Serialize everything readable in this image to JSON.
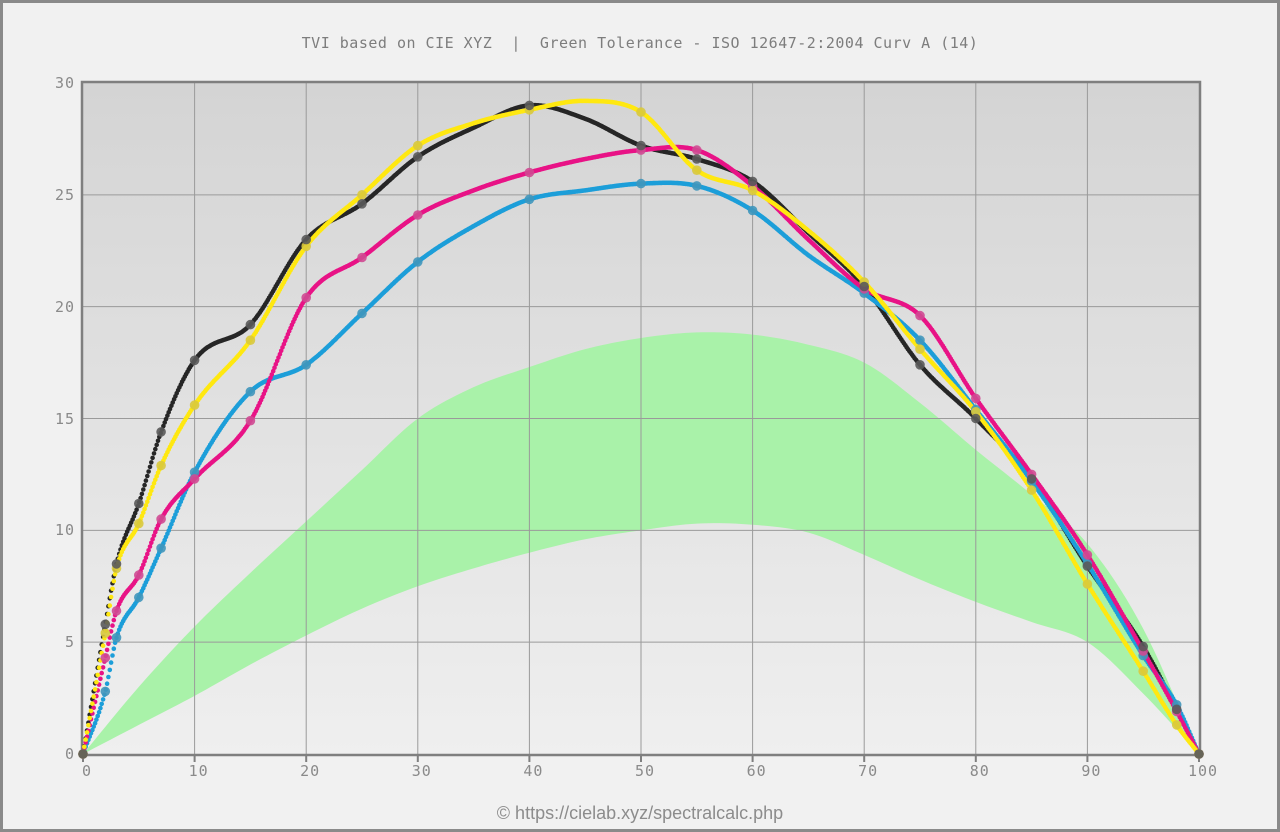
{
  "title": "TVI based on CIE XYZ  |  Green Tolerance - ISO 12647-2:2004 Curv A (14)",
  "footer": "© https://cielab.xyz/spectralcalc.php",
  "chart_data": {
    "type": "line",
    "title": "TVI based on CIE XYZ | Green Tolerance - ISO 12647-2:2004 Curv A (14)",
    "xlabel": "",
    "ylabel": "",
    "xlim": [
      0,
      100
    ],
    "ylim": [
      0,
      30
    ],
    "x_ticks": [
      0,
      10,
      20,
      30,
      40,
      50,
      60,
      70,
      80,
      90,
      100
    ],
    "y_ticks": [
      0,
      5,
      10,
      15,
      20,
      25,
      30
    ],
    "grid": true,
    "legend": "none",
    "x": [
      0,
      2,
      3,
      5,
      7,
      10,
      15,
      20,
      25,
      30,
      35,
      40,
      45,
      50,
      55,
      60,
      65,
      70,
      75,
      80,
      85,
      90,
      95,
      98,
      100
    ],
    "marker_x": [
      0,
      2,
      3,
      5,
      7,
      10,
      15,
      20,
      25,
      30,
      40,
      50,
      55,
      60,
      70,
      75,
      80,
      85,
      90,
      95,
      98,
      100
    ],
    "series": [
      {
        "name": "cyan",
        "color": "#1c9ed9",
        "marker_color": "#4096bb",
        "values": [
          0,
          2.8,
          5.2,
          7.0,
          9.2,
          12.6,
          16.2,
          17.4,
          19.7,
          22.0,
          23.6,
          24.8,
          25.2,
          25.5,
          25.4,
          24.3,
          22.3,
          20.6,
          18.5,
          15.4,
          12.2,
          8.5,
          4.4,
          2.2,
          0
        ]
      },
      {
        "name": "magenta",
        "color": "#e81386",
        "marker_color": "#cf4a92",
        "values": [
          0,
          4.3,
          6.4,
          8.0,
          10.5,
          12.3,
          14.9,
          20.4,
          22.2,
          24.1,
          25.2,
          26.0,
          26.6,
          27.0,
          27.0,
          25.4,
          23.0,
          20.8,
          19.6,
          15.9,
          12.5,
          8.9,
          4.6,
          1.9,
          0
        ]
      },
      {
        "name": "yellow",
        "color": "#ffe810",
        "marker_color": "#d9c93c",
        "values": [
          0,
          5.4,
          8.3,
          10.3,
          12.9,
          15.6,
          18.5,
          22.7,
          25.0,
          27.2,
          28.2,
          28.8,
          29.2,
          28.7,
          26.1,
          25.2,
          23.4,
          21.1,
          18.1,
          15.3,
          11.8,
          7.6,
          3.7,
          1.3,
          0
        ]
      },
      {
        "name": "black",
        "color": "#262626",
        "marker_color": "#5a5a5a",
        "values": [
          0,
          5.8,
          8.5,
          11.2,
          14.4,
          17.6,
          19.2,
          23.0,
          24.6,
          26.7,
          28.0,
          29.0,
          28.4,
          27.2,
          26.6,
          25.6,
          23.3,
          20.9,
          17.4,
          15.0,
          12.3,
          8.4,
          4.8,
          2.0,
          0
        ]
      }
    ],
    "tolerance_band": {
      "name": "Green Tolerance ISO 12647-2:2004 Curve A",
      "color": "#a9f2a9",
      "x": [
        0,
        5,
        10,
        15,
        20,
        25,
        30,
        35,
        40,
        45,
        50,
        55,
        60,
        65,
        70,
        75,
        80,
        85,
        90,
        95,
        100
      ],
      "upper": [
        0,
        3.0,
        5.7,
        8.1,
        10.4,
        12.7,
        15.0,
        16.4,
        17.3,
        18.1,
        18.6,
        18.85,
        18.75,
        18.3,
        17.5,
        15.7,
        13.6,
        11.6,
        9.4,
        5.6,
        0
      ],
      "lower": [
        0,
        1.3,
        2.6,
        4.0,
        5.3,
        6.5,
        7.5,
        8.3,
        9.0,
        9.6,
        10.0,
        10.3,
        10.25,
        9.9,
        8.9,
        7.8,
        6.8,
        5.9,
        5.0,
        2.7,
        0
      ]
    },
    "style": {
      "plot_bg_top": "#d4d4d4",
      "plot_bg_bottom": "#efefef",
      "figure_bg": "#f1f1f1",
      "grid_color": "#9a9a9a",
      "axis_color": "#7f7f7f",
      "frame_color": "#8a8a8a"
    }
  }
}
